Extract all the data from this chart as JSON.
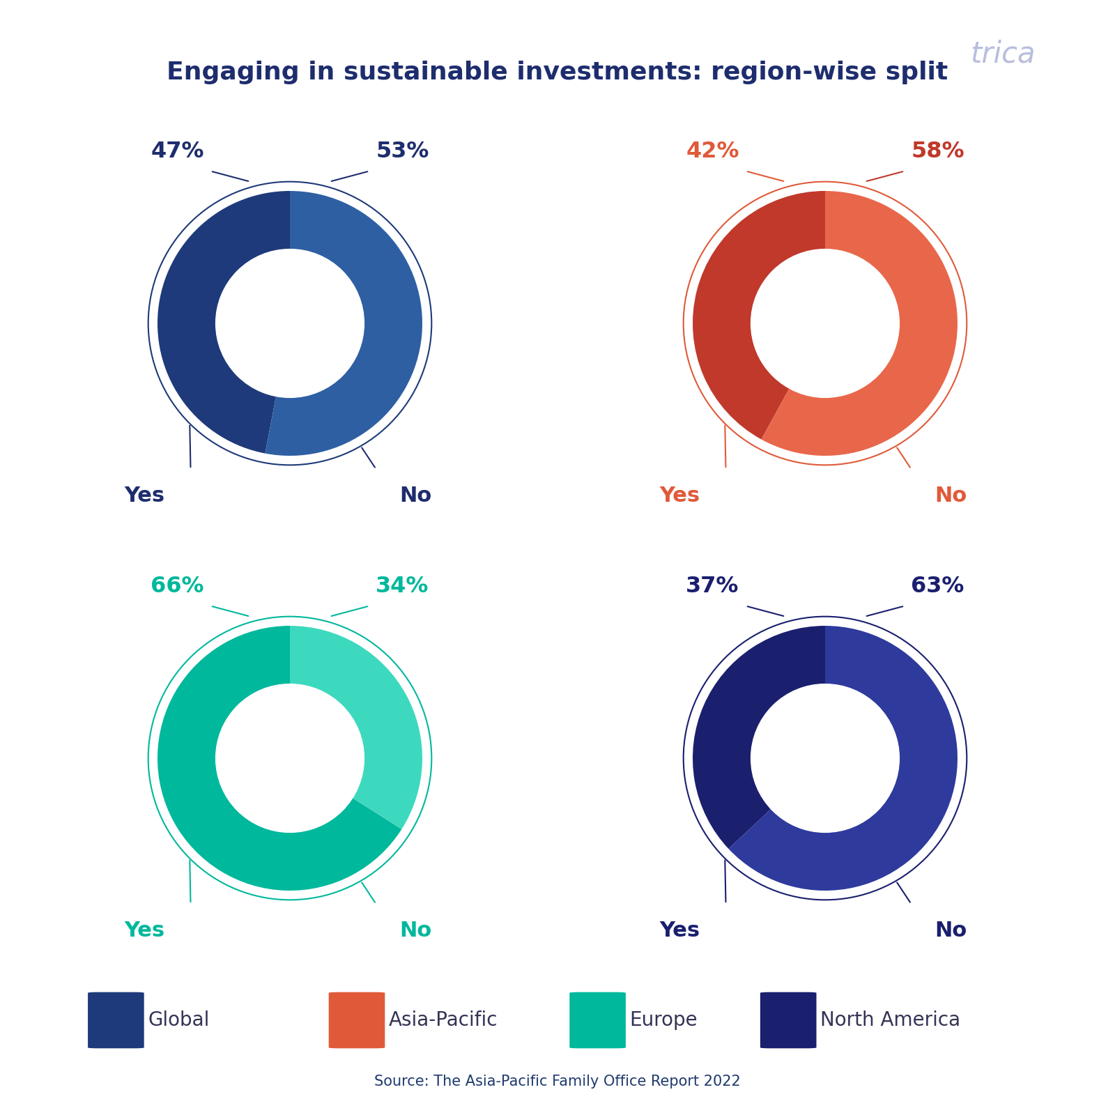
{
  "title": "Engaging in sustainable investments: region-wise split",
  "title_color": "#1e2d6e",
  "background_color": "#ffffff",
  "source_text": "Source: The Asia-Pacific Family Office Report 2022",
  "source_color": "#1e3a6e",
  "charts": [
    {
      "label": "Global",
      "yes_pct": 47,
      "no_pct": 53,
      "yes_color": "#1e3a7a",
      "no_color": "#2e5fa3",
      "outline_color": "#1e3a7a",
      "yes_label_color": "#1e2d6e",
      "no_label_color": "#1e2d6e",
      "yes_no_color": "#1e2d6e"
    },
    {
      "label": "Asia-Pacific",
      "yes_pct": 42,
      "no_pct": 58,
      "yes_color": "#c0392b",
      "no_color": "#e8674a",
      "outline_color": "#e05a3a",
      "yes_label_color": "#e05a3a",
      "no_label_color": "#c0392b",
      "yes_no_color": "#e05a3a"
    },
    {
      "label": "Europe",
      "yes_pct": 66,
      "no_pct": 34,
      "yes_color": "#00b89c",
      "no_color": "#3dd9be",
      "outline_color": "#00b89c",
      "yes_label_color": "#00b89c",
      "no_label_color": "#00b89c",
      "yes_no_color": "#00b89c"
    },
    {
      "label": "North America",
      "yes_pct": 37,
      "no_pct": 63,
      "yes_color": "#1a1f6e",
      "no_color": "#2e3a9c",
      "outline_color": "#1a1f6e",
      "yes_label_color": "#1a1f6e",
      "no_label_color": "#1a1f6e",
      "yes_no_color": "#1a1f6e"
    }
  ],
  "legend": [
    {
      "label": "Global",
      "color": "#1e3a7a"
    },
    {
      "label": "Asia-Pacific",
      "color": "#e05a3a"
    },
    {
      "label": "Europe",
      "color": "#00b89c"
    },
    {
      "label": "North America",
      "color": "#1a1f6e"
    }
  ]
}
